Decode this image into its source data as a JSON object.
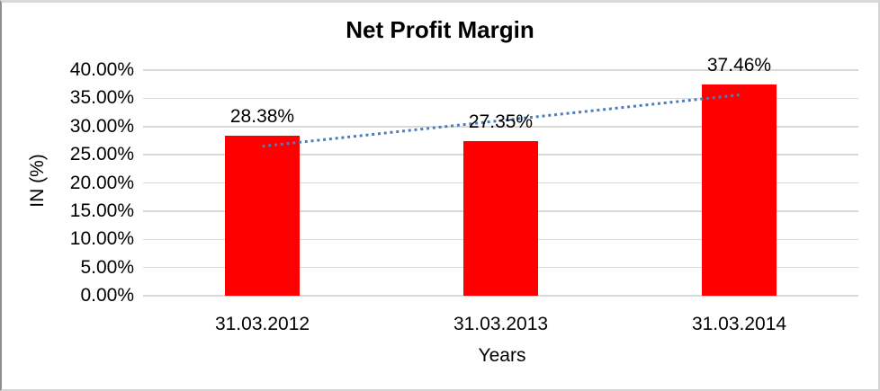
{
  "window": {
    "background": "#ffffff",
    "border_color": "#d9d9d9"
  },
  "chart_data": {
    "type": "bar",
    "title": "Net Profit Margin",
    "xlabel": "Years",
    "ylabel": "IN (%)",
    "categories": [
      "31.03.2012",
      "31.03.2013",
      "31.03.2014"
    ],
    "values": [
      28.38,
      27.35,
      37.46
    ],
    "data_labels": [
      "28.38%",
      "27.35%",
      "37.46%"
    ],
    "ylim": [
      0,
      40
    ],
    "ytick_step": 5,
    "ytick_labels": [
      "0.00%",
      "5.00%",
      "10.00%",
      "15.00%",
      "20.00%",
      "25.00%",
      "30.00%",
      "35.00%",
      "40.00%"
    ],
    "grid": true,
    "legend": "none",
    "bar_color": "#ff0000",
    "gridline_color": "#d9d9d9",
    "text_color": "#000000",
    "trendline": {
      "type": "linear",
      "style": "dotted",
      "color": "#4a7ebb",
      "start_value": 26.5,
      "end_value": 35.6
    }
  }
}
